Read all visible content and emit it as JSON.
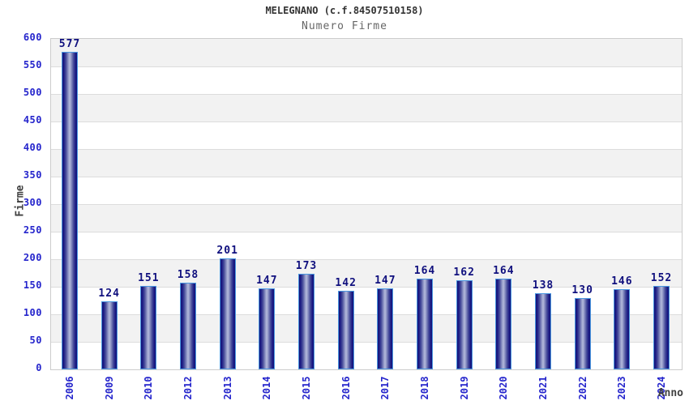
{
  "header": {
    "title": "MELEGNANO (c.f.84507510158)",
    "subtitle": "Numero Firme"
  },
  "chart_data": {
    "type": "bar",
    "title": "MELEGNANO (c.f.84507510158)",
    "subtitle": "Numero Firme",
    "xlabel": "Anno",
    "ylabel": "Firme",
    "categories": [
      "2006",
      "2009",
      "2010",
      "2012",
      "2013",
      "2014",
      "2015",
      "2016",
      "2017",
      "2018",
      "2019",
      "2020",
      "2021",
      "2022",
      "2023",
      "2024"
    ],
    "values": [
      577,
      124,
      151,
      158,
      201,
      147,
      173,
      142,
      147,
      164,
      162,
      164,
      138,
      130,
      146,
      152
    ],
    "ylim": [
      0,
      600
    ],
    "ytick_step": 50,
    "yticks": [
      0,
      50,
      100,
      150,
      200,
      250,
      300,
      350,
      400,
      450,
      500,
      550,
      600
    ],
    "grid": "horizontal-alternating-bands",
    "legend": null,
    "value_labels_shown": true,
    "colors": {
      "bar_dark": "#141478",
      "bar_light": "#b4badc",
      "bar_border": "#4a97e0",
      "axis_tick_text": "#2525cc",
      "value_label_text": "#10107e",
      "band_gray": "#f2f2f2",
      "band_white": "#ffffff",
      "gridline": "#dcdcdc",
      "plot_border": "#cccccc",
      "title_text": "#333333",
      "subtitle_text": "#666666",
      "axis_title_text": "#404040"
    }
  }
}
